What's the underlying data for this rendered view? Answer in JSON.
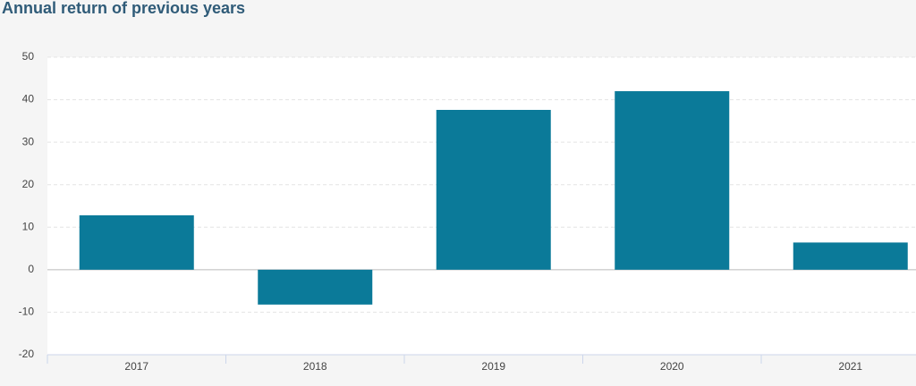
{
  "chart_data": {
    "type": "bar",
    "title": "Annual return of previous years",
    "categories": [
      "2017",
      "2018",
      "2019",
      "2020",
      "2021"
    ],
    "values": [
      12.8,
      -8.2,
      37.6,
      42.0,
      6.4
    ],
    "color": "#0b7a99",
    "ylim": [
      -20,
      50
    ],
    "yticks": [
      -20,
      -10,
      0,
      10,
      20,
      30,
      40,
      50
    ],
    "grid": true
  }
}
